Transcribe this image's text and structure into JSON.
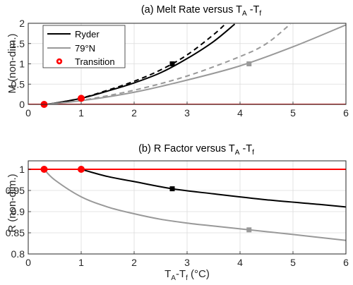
{
  "chart_data": [
    {
      "type": "line",
      "panel": "a",
      "title": {
        "prefix": "(a) Melt Rate versus T",
        "sub1": "A",
        "mid": " -T",
        "sub2": "f"
      },
      "ylabel": "M (non-dim.)",
      "xlim": [
        0,
        6
      ],
      "ylim": [
        0,
        2
      ],
      "xticks": [
        "0",
        "1",
        "2",
        "3",
        "4",
        "5",
        "6"
      ],
      "yticks": [
        "0",
        "0.5",
        "1",
        "1.5",
        "2"
      ],
      "grid": true,
      "legend": {
        "placement": "top-left",
        "entries": [
          {
            "label": "Ryder",
            "color": "#000000",
            "marker": "line"
          },
          {
            "label": "79°N",
            "color": "#999999",
            "marker": "line"
          },
          {
            "label": "Transition",
            "color": "#ff0000",
            "marker": "dot"
          }
        ]
      },
      "series": [
        {
          "name": "Ryder",
          "color": "#000000",
          "style": "solid",
          "x": [
            0.3,
            0.5,
            1.0,
            1.5,
            2.0,
            2.5,
            3.0,
            3.5,
            3.9
          ],
          "y": [
            0.0,
            0.03,
            0.15,
            0.33,
            0.53,
            0.78,
            1.13,
            1.55,
            1.98
          ]
        },
        {
          "color": "#000000",
          "style": "dashed",
          "x": [
            0.3,
            0.5,
            1.0,
            1.5,
            2.0,
            2.5,
            3.0,
            3.5,
            3.72
          ],
          "y": [
            0.0,
            0.03,
            0.155,
            0.35,
            0.57,
            0.85,
            1.22,
            1.72,
            1.98
          ]
        },
        {
          "name": "79°N",
          "color": "#999999",
          "style": "solid",
          "x": [
            0.3,
            1.0,
            2.0,
            3.0,
            4.0,
            5.0,
            6.0
          ],
          "y": [
            0.0,
            0.09,
            0.3,
            0.6,
            0.95,
            1.42,
            1.96
          ]
        },
        {
          "color": "#999999",
          "style": "dashed",
          "x": [
            0.3,
            1.0,
            2.0,
            3.0,
            4.0,
            4.5,
            4.95
          ],
          "y": [
            0.0,
            0.1,
            0.35,
            0.7,
            1.18,
            1.5,
            1.98
          ]
        }
      ],
      "hline": {
        "y": 0,
        "color": "#ff0000"
      },
      "markers": [
        {
          "x": 2.72,
          "y": 1.0,
          "shape": "square",
          "color": "#000000"
        },
        {
          "x": 4.17,
          "y": 1.0,
          "shape": "square",
          "color": "#999999"
        },
        {
          "x": 0.3,
          "y": 0.0,
          "shape": "circle",
          "color": "#ff0000"
        },
        {
          "x": 1.0,
          "y": 0.15,
          "shape": "circle",
          "color": "#ff0000"
        }
      ]
    },
    {
      "type": "line",
      "panel": "b",
      "title": {
        "prefix": "(b) R Factor versus T",
        "sub1": "A",
        "mid": " -T",
        "sub2": "f"
      },
      "ylabel": "R (non-dim.)",
      "xlabel": {
        "t1": "T",
        "sub1": "A",
        "mid": "-T",
        "sub2": "f",
        "unit": " (°C)"
      },
      "xlim": [
        0,
        6
      ],
      "ylim": [
        0.8,
        1.02
      ],
      "xticks": [
        "0",
        "1",
        "2",
        "3",
        "4",
        "5",
        "6"
      ],
      "yticks": [
        "0.8",
        "0.85",
        "0.9",
        "0.95",
        "1"
      ],
      "grid": true,
      "series": [
        {
          "color": "#000000",
          "style": "solid",
          "x": [
            1.0,
            1.5,
            2.0,
            2.72,
            3.5,
            4.5,
            5.5,
            6.0
          ],
          "y": [
            1.0,
            0.983,
            0.971,
            0.954,
            0.942,
            0.928,
            0.917,
            0.911
          ]
        },
        {
          "color": "#999999",
          "style": "solid",
          "x": [
            0.3,
            0.5,
            1.0,
            1.5,
            2.0,
            2.5,
            3.0,
            3.5,
            4.17,
            5.0,
            6.0
          ],
          "y": [
            1.0,
            0.975,
            0.935,
            0.911,
            0.895,
            0.882,
            0.873,
            0.866,
            0.857,
            0.846,
            0.832
          ]
        }
      ],
      "hline": {
        "y": 1.0,
        "color": "#ff0000"
      },
      "markers": [
        {
          "x": 2.72,
          "y": 0.954,
          "shape": "square",
          "color": "#000000"
        },
        {
          "x": 4.17,
          "y": 0.857,
          "shape": "square",
          "color": "#999999"
        },
        {
          "x": 0.3,
          "y": 1.0,
          "shape": "circle",
          "color": "#ff0000"
        },
        {
          "x": 1.0,
          "y": 1.0,
          "shape": "circle",
          "color": "#ff0000"
        }
      ]
    }
  ]
}
